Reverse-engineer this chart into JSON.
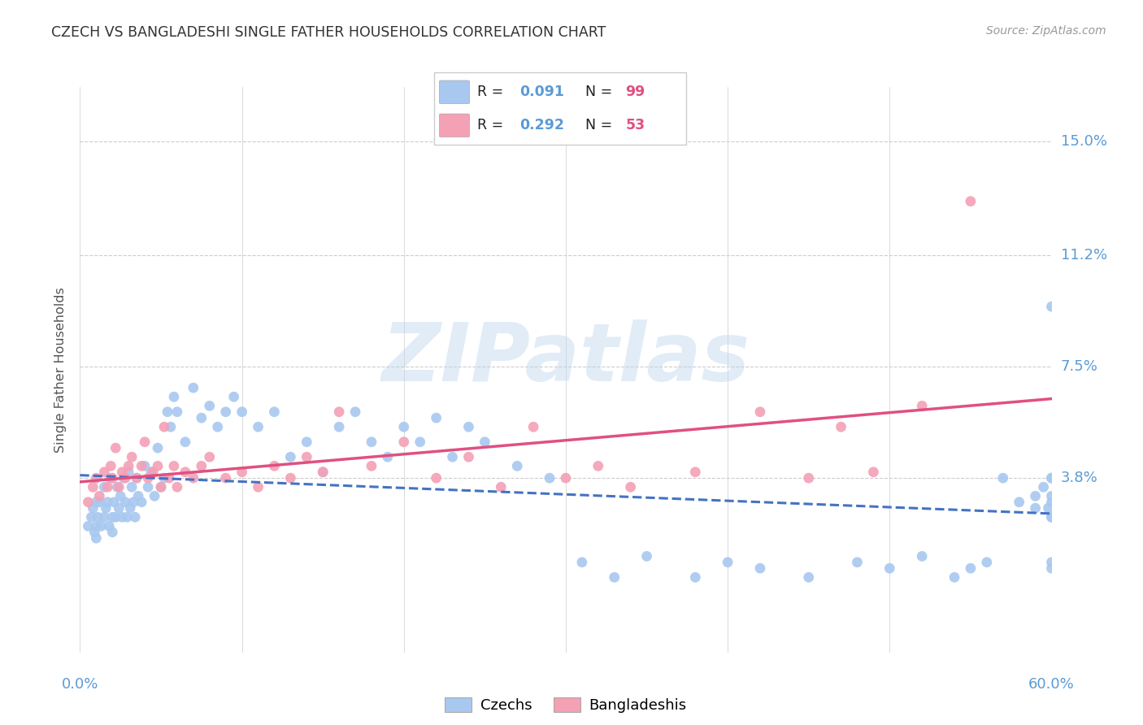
{
  "title": "CZECH VS BANGLADESHI SINGLE FATHER HOUSEHOLDS CORRELATION CHART",
  "source": "Source: ZipAtlas.com",
  "ylabel": "Single Father Households",
  "ytick_labels": [
    "3.8%",
    "7.5%",
    "11.2%",
    "15.0%"
  ],
  "ytick_values": [
    0.038,
    0.075,
    0.112,
    0.15
  ],
  "xmin": 0.0,
  "xmax": 0.6,
  "ymin": -0.02,
  "ymax": 0.168,
  "czech_color": "#A8C8F0",
  "bangladeshi_color": "#F4A0B5",
  "czech_line_color": "#4472C4",
  "bangladeshi_line_color": "#E05080",
  "czech_R": 0.091,
  "czech_N": 99,
  "bangladeshi_R": 0.292,
  "bangladeshi_N": 53,
  "watermark": "ZIPatlas",
  "grid_color": "#CCCCCC",
  "title_color": "#333333",
  "axis_label_color": "#5B9BD5",
  "legend_label_color": "#5B9BD5",
  "legend_N_color": "#E05080",
  "czech_x": [
    0.005,
    0.007,
    0.008,
    0.009,
    0.01,
    0.01,
    0.01,
    0.011,
    0.012,
    0.013,
    0.015,
    0.015,
    0.016,
    0.017,
    0.018,
    0.019,
    0.02,
    0.02,
    0.021,
    0.022,
    0.023,
    0.024,
    0.025,
    0.026,
    0.027,
    0.028,
    0.029,
    0.03,
    0.031,
    0.032,
    0.033,
    0.034,
    0.035,
    0.036,
    0.038,
    0.04,
    0.042,
    0.044,
    0.046,
    0.048,
    0.05,
    0.052,
    0.054,
    0.056,
    0.058,
    0.06,
    0.065,
    0.07,
    0.075,
    0.08,
    0.085,
    0.09,
    0.095,
    0.1,
    0.11,
    0.12,
    0.13,
    0.14,
    0.15,
    0.16,
    0.17,
    0.18,
    0.19,
    0.2,
    0.21,
    0.22,
    0.23,
    0.24,
    0.25,
    0.27,
    0.29,
    0.31,
    0.33,
    0.35,
    0.38,
    0.4,
    0.42,
    0.45,
    0.48,
    0.5,
    0.52,
    0.54,
    0.55,
    0.56,
    0.57,
    0.58,
    0.59,
    0.595,
    0.598,
    0.6,
    0.6,
    0.6,
    0.6,
    0.6,
    0.6,
    0.6,
    0.6,
    0.6,
    0.59
  ],
  "czech_y": [
    0.022,
    0.025,
    0.028,
    0.02,
    0.03,
    0.018,
    0.022,
    0.025,
    0.03,
    0.022,
    0.025,
    0.035,
    0.028,
    0.03,
    0.022,
    0.038,
    0.025,
    0.02,
    0.03,
    0.025,
    0.035,
    0.028,
    0.032,
    0.025,
    0.038,
    0.03,
    0.025,
    0.04,
    0.028,
    0.035,
    0.03,
    0.025,
    0.038,
    0.032,
    0.03,
    0.042,
    0.035,
    0.04,
    0.032,
    0.048,
    0.035,
    0.038,
    0.06,
    0.055,
    0.065,
    0.06,
    0.05,
    0.068,
    0.058,
    0.062,
    0.055,
    0.06,
    0.065,
    0.06,
    0.055,
    0.06,
    0.045,
    0.05,
    0.04,
    0.055,
    0.06,
    0.05,
    0.045,
    0.055,
    0.05,
    0.058,
    0.045,
    0.055,
    0.05,
    0.042,
    0.038,
    0.01,
    0.005,
    0.012,
    0.005,
    0.01,
    0.008,
    0.005,
    0.01,
    0.008,
    0.012,
    0.005,
    0.008,
    0.01,
    0.038,
    0.03,
    0.032,
    0.035,
    0.028,
    0.038,
    0.025,
    0.01,
    0.008,
    0.095,
    0.038,
    0.03,
    0.025,
    0.032,
    0.028
  ],
  "bangladeshi_x": [
    0.005,
    0.008,
    0.01,
    0.012,
    0.015,
    0.017,
    0.019,
    0.02,
    0.022,
    0.024,
    0.026,
    0.028,
    0.03,
    0.032,
    0.035,
    0.038,
    0.04,
    0.042,
    0.045,
    0.048,
    0.05,
    0.052,
    0.055,
    0.058,
    0.06,
    0.065,
    0.07,
    0.075,
    0.08,
    0.09,
    0.1,
    0.11,
    0.12,
    0.13,
    0.14,
    0.15,
    0.16,
    0.18,
    0.2,
    0.22,
    0.24,
    0.26,
    0.28,
    0.3,
    0.32,
    0.34,
    0.38,
    0.42,
    0.45,
    0.47,
    0.49,
    0.52,
    0.55
  ],
  "bangladeshi_y": [
    0.03,
    0.035,
    0.038,
    0.032,
    0.04,
    0.035,
    0.042,
    0.038,
    0.048,
    0.035,
    0.04,
    0.038,
    0.042,
    0.045,
    0.038,
    0.042,
    0.05,
    0.038,
    0.04,
    0.042,
    0.035,
    0.055,
    0.038,
    0.042,
    0.035,
    0.04,
    0.038,
    0.042,
    0.045,
    0.038,
    0.04,
    0.035,
    0.042,
    0.038,
    0.045,
    0.04,
    0.06,
    0.042,
    0.05,
    0.038,
    0.045,
    0.035,
    0.055,
    0.038,
    0.042,
    0.035,
    0.04,
    0.06,
    0.038,
    0.055,
    0.04,
    0.062,
    0.13
  ]
}
